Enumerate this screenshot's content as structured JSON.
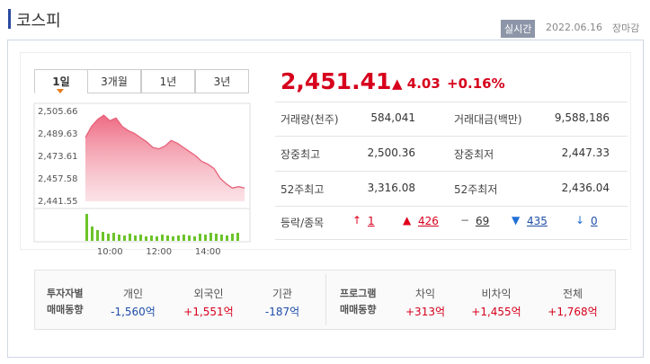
{
  "header": {
    "title": "코스피",
    "badge": "실시간",
    "date": "2022.06.16",
    "status": "장마감"
  },
  "tabs": [
    "1일",
    "3개월",
    "1년",
    "3년"
  ],
  "chart_data": {
    "type": "line",
    "color": "#e8627a",
    "x": [
      "09:00",
      "09:15",
      "09:30",
      "09:45",
      "10:00",
      "10:15",
      "10:30",
      "10:45",
      "11:00",
      "11:15",
      "11:30",
      "11:45",
      "12:00",
      "12:15",
      "12:30",
      "12:45",
      "13:00",
      "13:15",
      "13:30",
      "13:45",
      "14:00",
      "14:15",
      "14:30",
      "14:45",
      "15:00",
      "15:15",
      "15:30"
    ],
    "values": [
      2487,
      2495,
      2500,
      2503,
      2499,
      2501,
      2495,
      2492,
      2490,
      2487,
      2484,
      2480,
      2479,
      2481,
      2485,
      2483,
      2480,
      2477,
      2474,
      2470,
      2468,
      2465,
      2458,
      2454,
      2451,
      2452,
      2451
    ],
    "ylim": [
      2441.55,
      2505.66
    ],
    "yticks": [
      {
        "value": 2505.66,
        "label": "2,505.66"
      },
      {
        "value": 2489.63,
        "label": "2,489.63"
      },
      {
        "value": 2473.61,
        "label": "2,473.61"
      },
      {
        "value": 2457.58,
        "label": "2,457.58"
      },
      {
        "value": 2441.55,
        "label": "2,441.55"
      }
    ],
    "xticks": [
      "10:00",
      "12:00",
      "14:00"
    ]
  },
  "quote": {
    "price": "2,451.41",
    "change": "▲ 4.03",
    "rate": "+0.16%"
  },
  "stats": [
    [
      [
        "거래량(천주)",
        "584,041"
      ],
      [
        "거래대금(백만)",
        "9,588,186"
      ]
    ],
    [
      [
        "장중최고",
        "2,500.36"
      ],
      [
        "장중최저",
        "2,447.33"
      ]
    ],
    [
      [
        "52주최고",
        "3,316.08"
      ],
      [
        "52주최저",
        "2,436.04"
      ]
    ]
  ],
  "breadth": {
    "label": "등락/종목",
    "items": [
      [
        "↑",
        "1"
      ],
      [
        "▲",
        "426"
      ],
      [
        "−",
        "69"
      ],
      [
        "▼",
        "435"
      ],
      [
        "↓",
        "0"
      ]
    ]
  },
  "investors": {
    "title": [
      "투자자별",
      "매매동향"
    ],
    "items": [
      [
        "개인",
        "-1,560억"
      ],
      [
        "외국인",
        "+1,551억"
      ],
      [
        "기관",
        "-187억"
      ]
    ]
  },
  "program": {
    "title": [
      "프로그램",
      "매매동향"
    ],
    "items": [
      [
        "차익",
        "+313억"
      ],
      [
        "비차익",
        "+1,455억"
      ],
      [
        "전체",
        "+1,768억"
      ]
    ]
  }
}
